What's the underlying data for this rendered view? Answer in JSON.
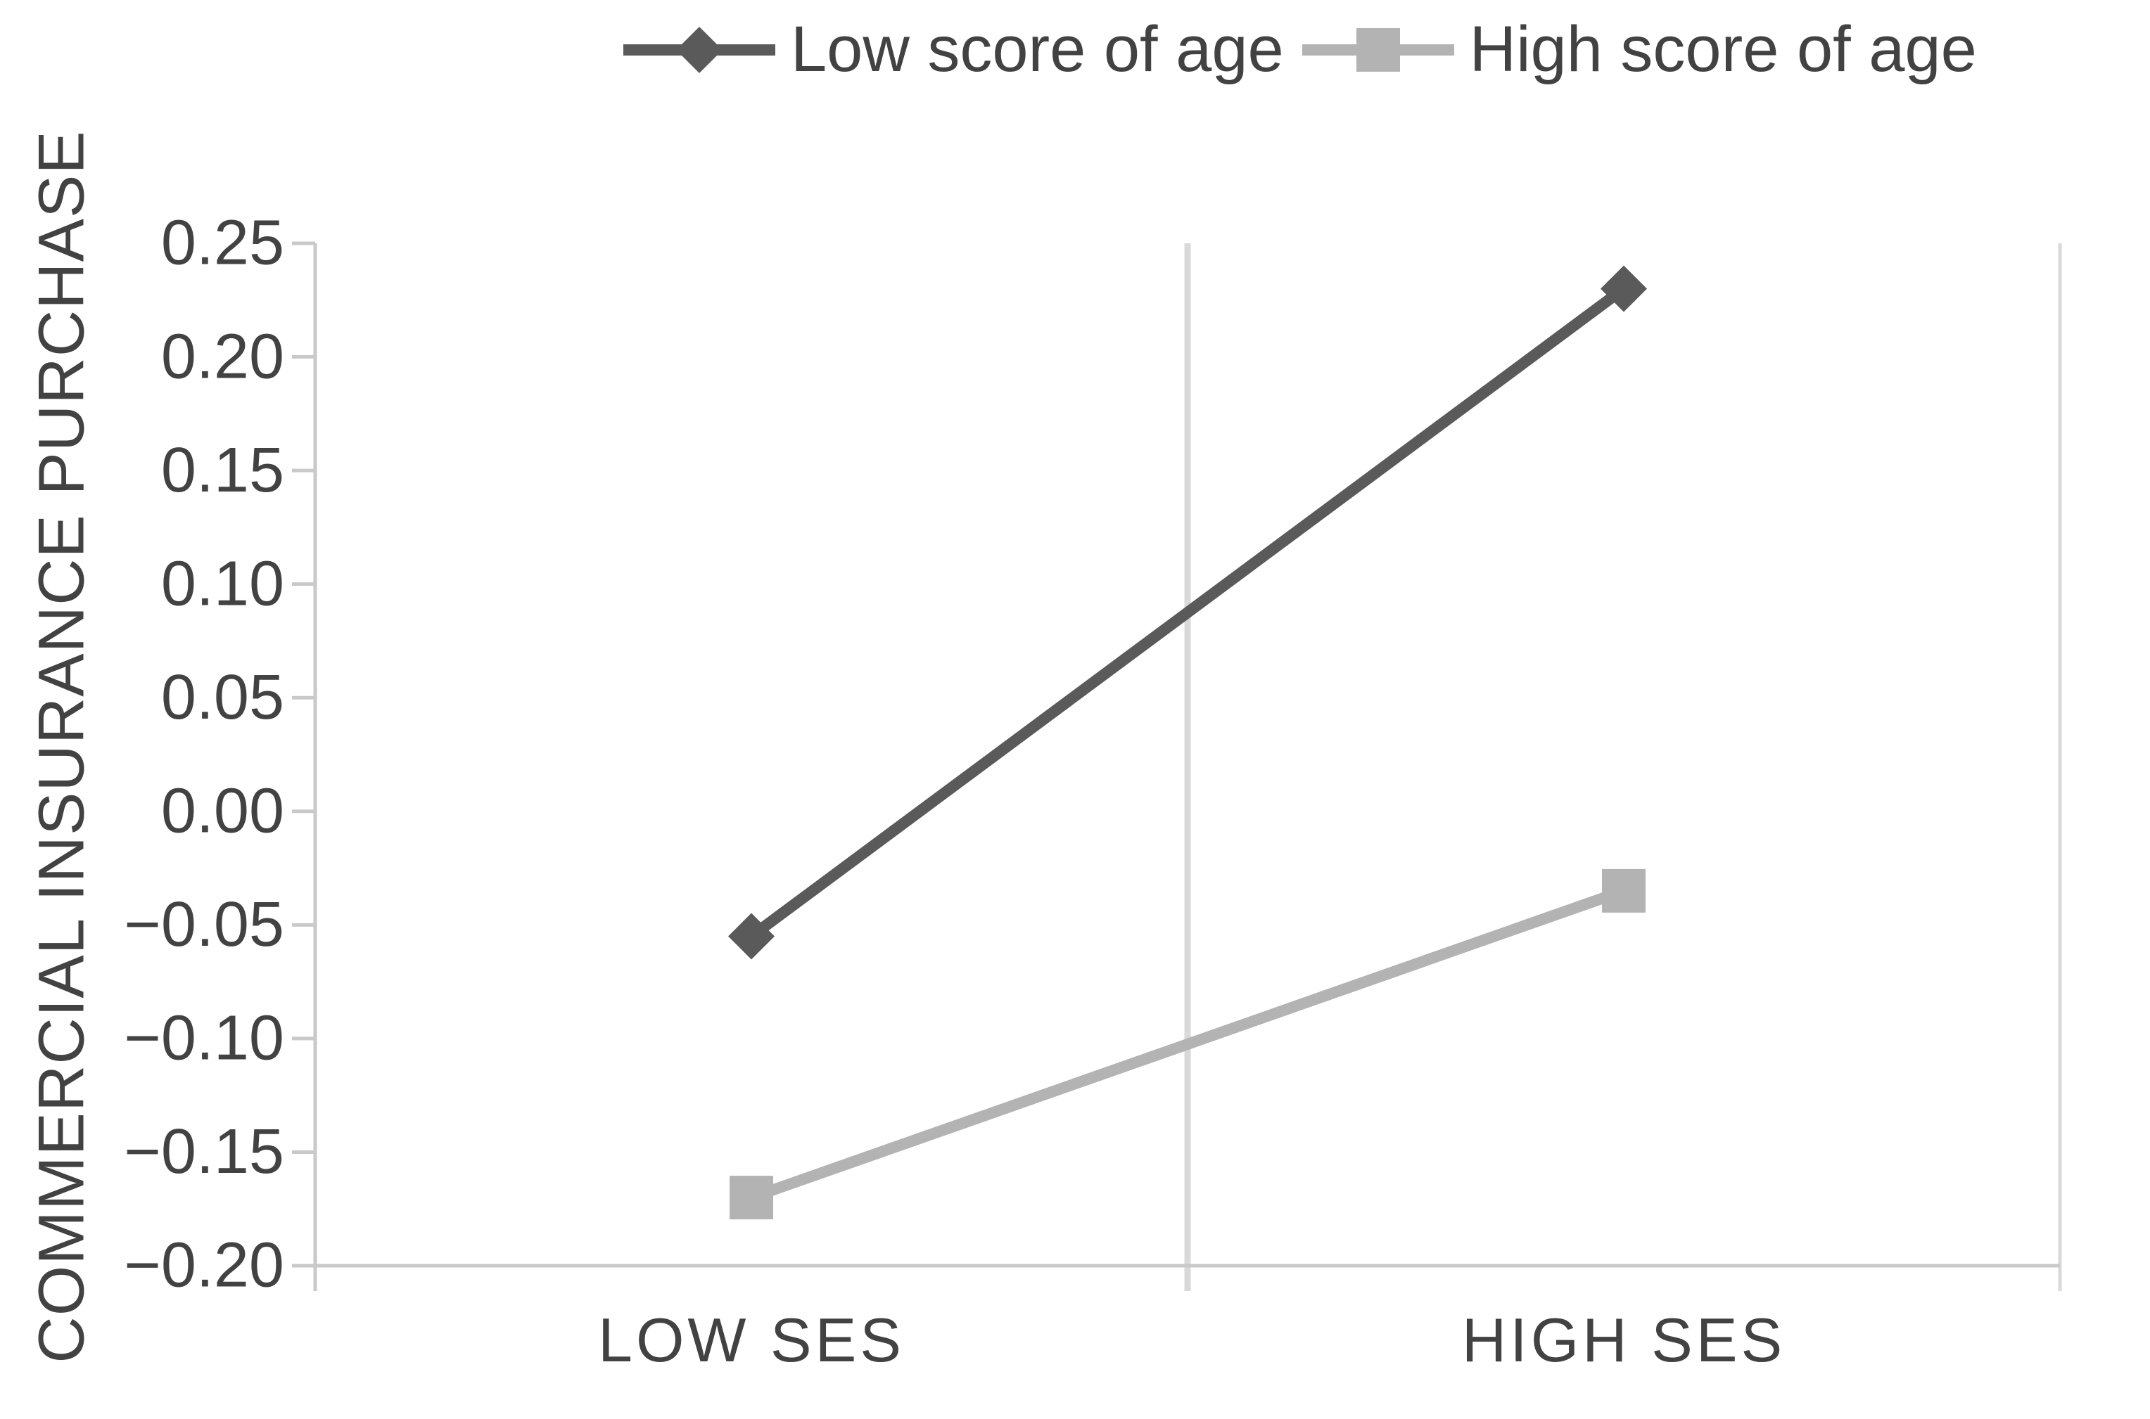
{
  "figure": {
    "background": "#ffffff"
  },
  "legend": {
    "position": "top",
    "items": [
      {
        "label": "Low score of age"
      },
      {
        "label": "High score of age"
      }
    ]
  },
  "chart_data": {
    "type": "line",
    "categories": [
      "LOW SES",
      "HIGH SES"
    ],
    "series": [
      {
        "name": "Low score of age",
        "marker": "diamond",
        "color": "#5a5a5a",
        "values": [
          -0.055,
          0.23
        ]
      },
      {
        "name": "High score of age",
        "marker": "square",
        "color": "#b3b3b3",
        "values": [
          -0.17,
          -0.035
        ]
      }
    ],
    "title": "",
    "xlabel": "",
    "ylabel": "COMMERCIAL INSURANCE PURCHASE",
    "ylim": [
      -0.2,
      0.25
    ],
    "yticks": [
      0.25,
      0.2,
      0.15,
      0.1,
      0.05,
      0,
      -0.05,
      -0.1,
      -0.15,
      -0.2
    ],
    "ytick_labels": [
      "0.25",
      "0.20",
      "0.15",
      "0.10",
      "0.05",
      "0.00",
      "−0.05",
      "−0.10",
      "−0.15",
      "−0.20"
    ],
    "grid": "vertical-category-boundaries",
    "legend_position": "top",
    "axis_color": "#c9c9c9",
    "gridline_color": "#d9d9d9",
    "text_color": "#424242"
  }
}
